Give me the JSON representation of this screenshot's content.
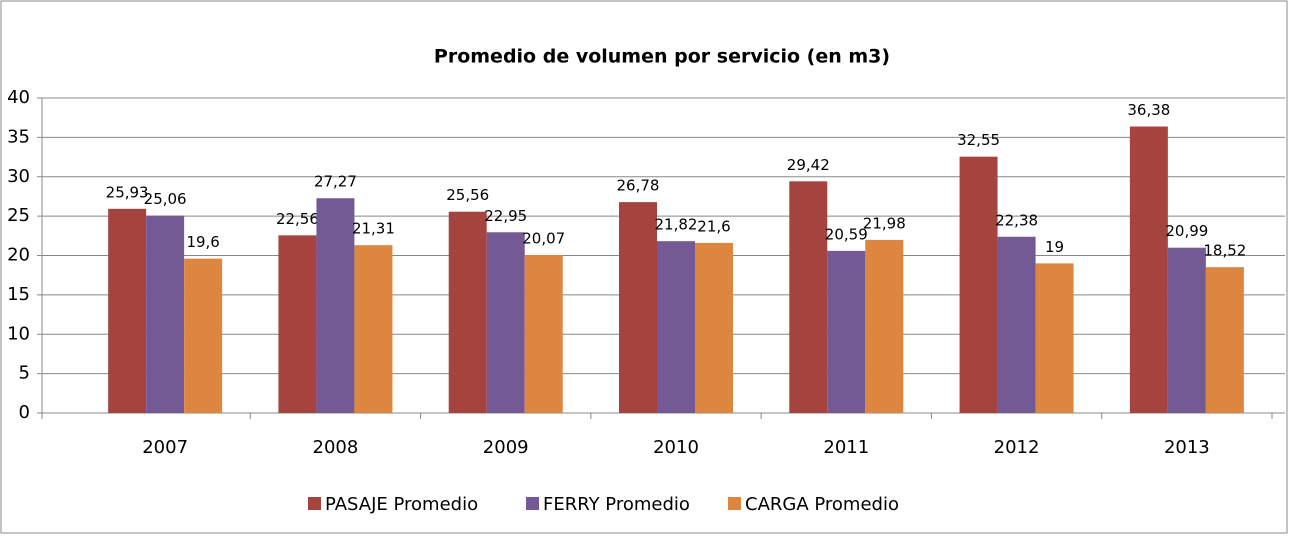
{
  "chart_data": {
    "type": "bar",
    "title": "Promedio de volumen por servicio (en m3)",
    "categories": [
      "2007",
      "2008",
      "2009",
      "2010",
      "2011",
      "2012",
      "2013"
    ],
    "series": [
      {
        "name": "PASAJE Promedio",
        "color": "#a5443f",
        "values": [
          25.93,
          22.56,
          25.56,
          26.78,
          29.42,
          32.55,
          36.38
        ],
        "value_labels": [
          "25,93",
          "22,56",
          "25,56",
          "26,78",
          "29,42",
          "32,55",
          "36,38"
        ]
      },
      {
        "name": "FERRY Promedio",
        "color": "#735a94",
        "values": [
          25.06,
          27.27,
          22.95,
          21.82,
          20.59,
          22.38,
          20.99
        ],
        "value_labels": [
          "25,06",
          "27,27",
          "22,95",
          "21,82",
          "20,59",
          "22,38",
          "20,99"
        ]
      },
      {
        "name": "CARGA Promedio",
        "color": "#dc863f",
        "values": [
          19.6,
          21.31,
          20.07,
          21.6,
          21.98,
          19,
          18.52
        ],
        "value_labels": [
          "19,6",
          "21,31",
          "20,07",
          "21,6",
          "21,98",
          "19",
          "18,52"
        ]
      }
    ],
    "ylim": [
      0,
      40
    ],
    "yticks": [
      0,
      5,
      10,
      15,
      20,
      25,
      30,
      35,
      40
    ],
    "grid": true,
    "legend": "bottom"
  }
}
